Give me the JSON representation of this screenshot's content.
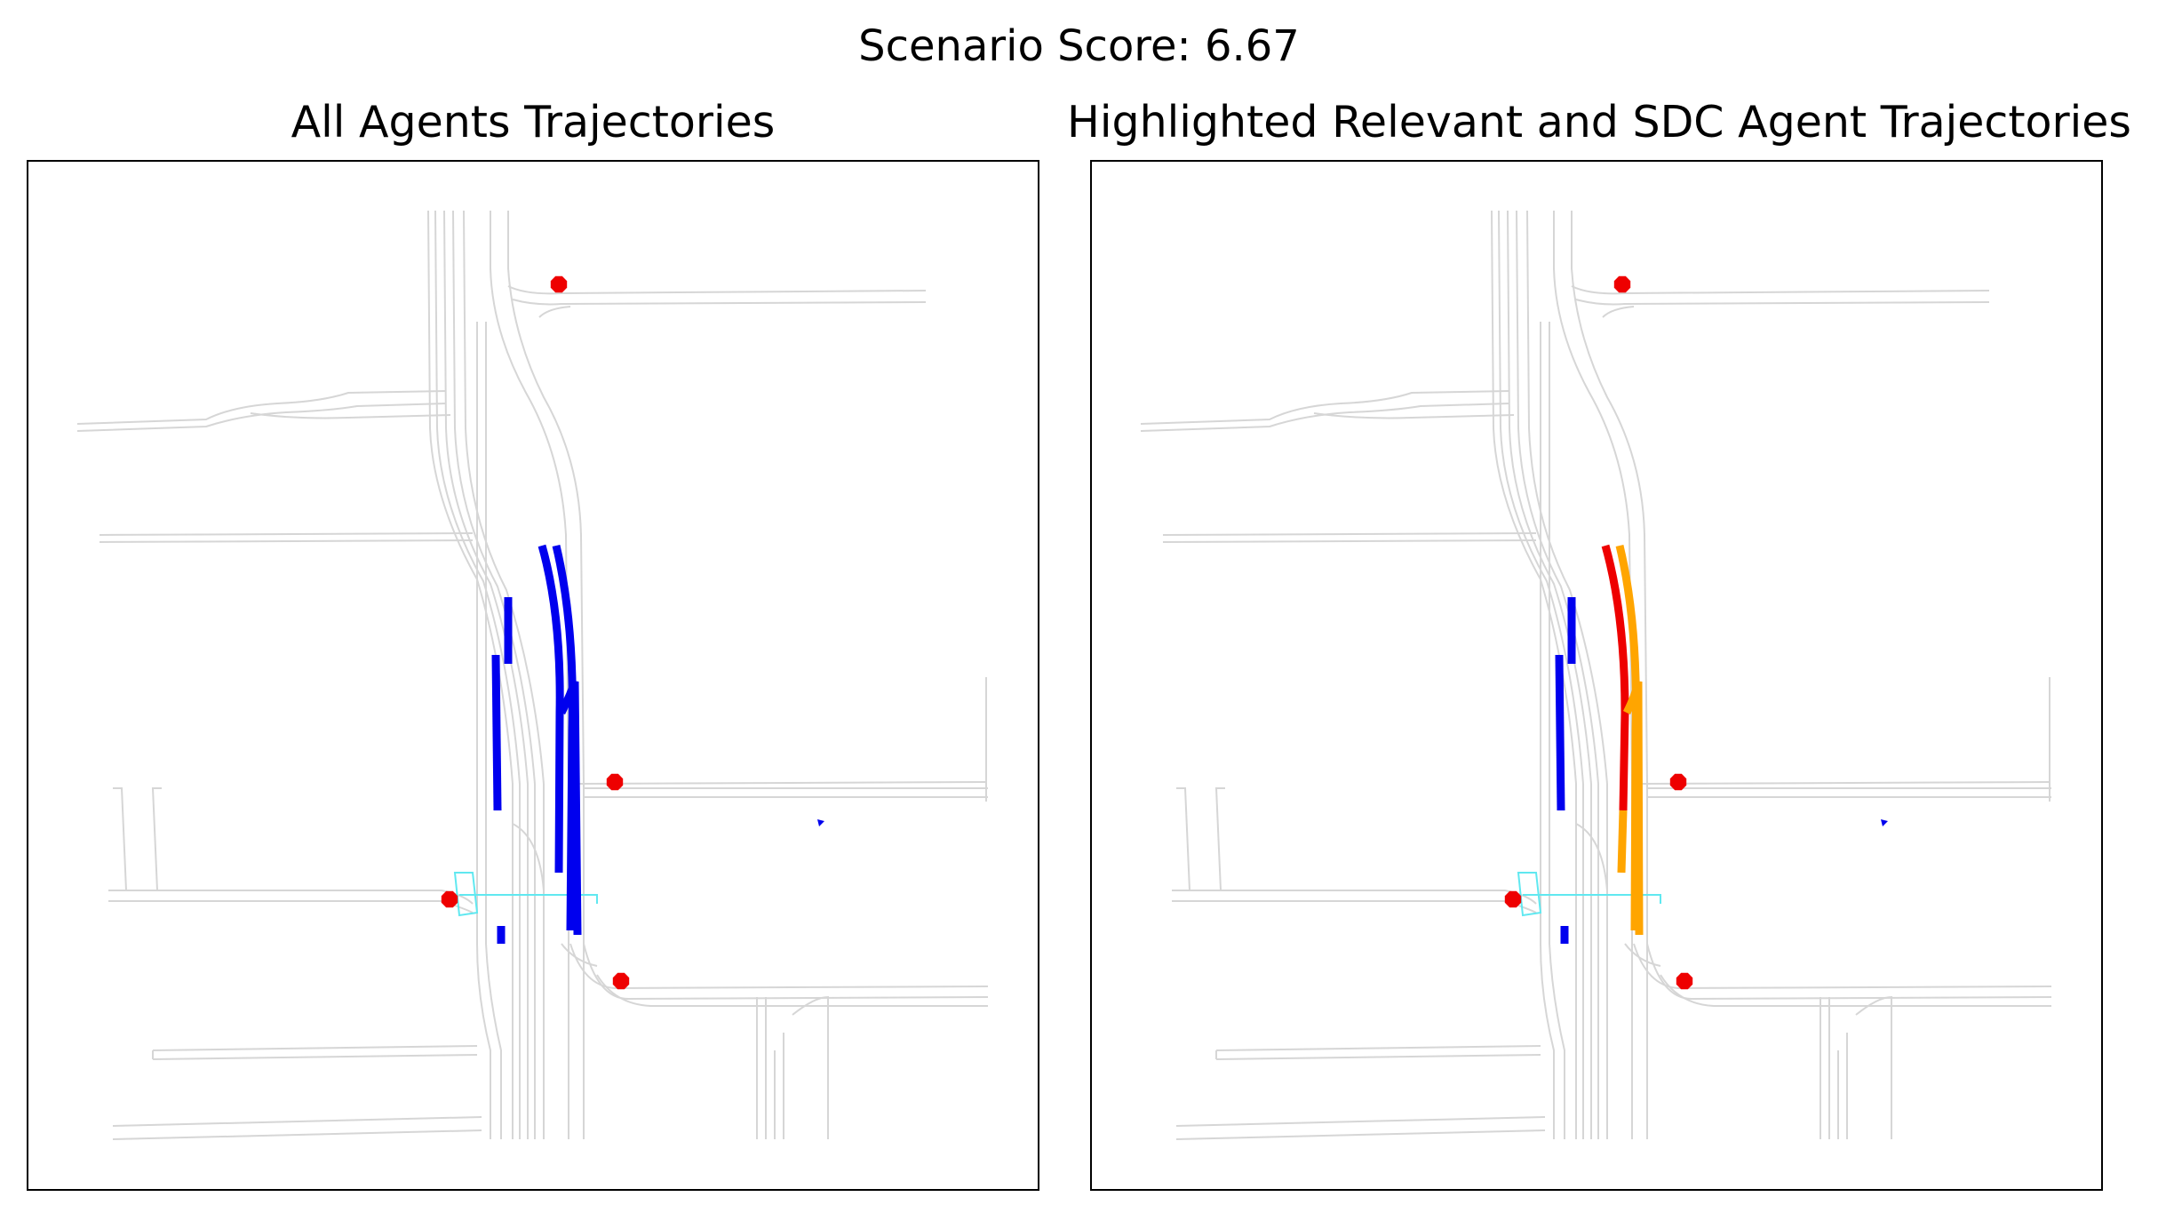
{
  "figure": {
    "suptitle": "Scenario Score: 6.67"
  },
  "panels": [
    {
      "id": "all",
      "title": "All Agents Trajectories"
    },
    {
      "id": "highlighted",
      "title": "Highlighted Relevant and SDC Agent Trajectories"
    }
  ],
  "colors": {
    "road": "#d6d6d6",
    "stop_sign": "#ee0000",
    "crosswalk": "#60e8f0",
    "agent": "#0000ee",
    "relevant_agent": "#ee0000",
    "sdc_agent": "#ffa500",
    "frame": "#000000"
  }
}
